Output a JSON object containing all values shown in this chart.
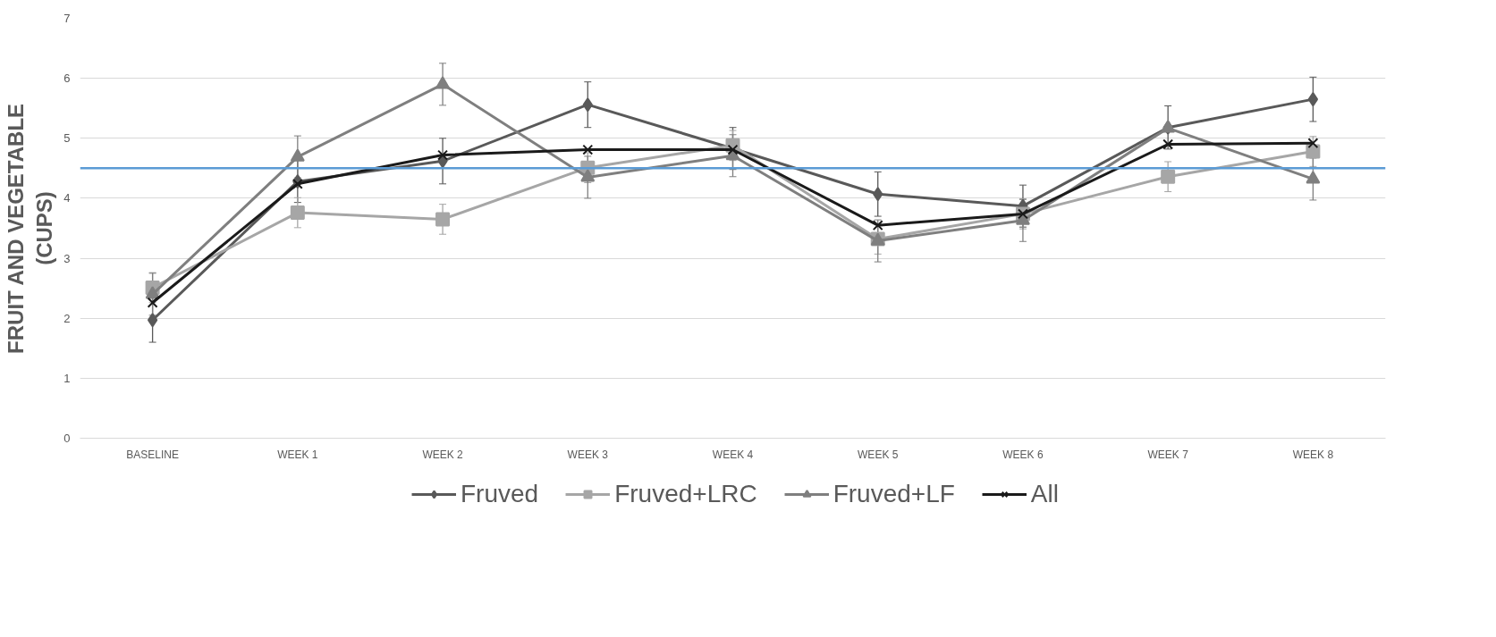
{
  "chart_data": {
    "type": "line",
    "ylabel": "FRUIT AND VEGETABLE\n(CUPS)",
    "categories": [
      "BASELINE",
      "WEEK 1",
      "WEEK 2",
      "WEEK 3",
      "WEEK 4",
      "WEEK 5",
      "WEEK 6",
      "WEEK 7",
      "WEEK 8"
    ],
    "ylim": [
      0,
      7
    ],
    "yticks": [
      0,
      1,
      2,
      3,
      4,
      5,
      6,
      7
    ],
    "grid": "y",
    "legend": "bottom",
    "line_style": "solid",
    "series": [
      {
        "name": "Fruved",
        "color": "#595959",
        "marker": "diamond",
        "values": [
          1.97,
          4.28,
          4.62,
          5.56,
          4.83,
          4.07,
          3.87,
          5.18,
          5.65
        ],
        "errors": [
          0.37,
          0.35,
          0.38,
          0.38,
          0.35,
          0.37,
          0.35,
          0.36,
          0.37
        ]
      },
      {
        "name": "Fruved+LRC",
        "color": "#a6a6a6",
        "marker": "square",
        "values": [
          2.51,
          3.76,
          3.65,
          4.51,
          4.88,
          3.32,
          3.74,
          4.36,
          4.78
        ],
        "errors": [
          0.25,
          0.25,
          0.25,
          0.25,
          0.25,
          0.25,
          0.25,
          0.25,
          0.25
        ]
      },
      {
        "name": "Fruved+LF",
        "color": "#7f7f7f",
        "marker": "triangle",
        "values": [
          2.4,
          4.69,
          5.9,
          4.35,
          4.71,
          3.29,
          3.63,
          5.17,
          4.32
        ],
        "errors": [
          0.35,
          0.35,
          0.35,
          0.35,
          0.35,
          0.35,
          0.35,
          null,
          0.35
        ]
      },
      {
        "name": "All",
        "color": "#1a1a1a",
        "marker": "cross",
        "values": [
          2.26,
          4.24,
          4.72,
          4.81,
          4.81,
          3.55,
          3.74,
          4.9,
          4.92
        ]
      }
    ],
    "ref_lines": [
      {
        "axis": "y",
        "value": 4.5,
        "color": "#5b9bd5",
        "line_style": "solid"
      }
    ]
  }
}
